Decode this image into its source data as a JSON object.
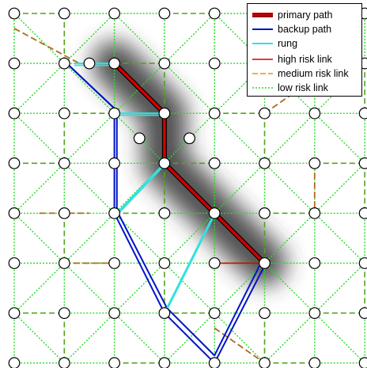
{
  "legend": {
    "items": [
      {
        "label": "primary path",
        "style": "primary",
        "color": "#d40000"
      },
      {
        "label": "backup path",
        "style": "backup",
        "color": "#0014c8"
      },
      {
        "label": "rung",
        "style": "rung",
        "color": "#33e0e0"
      },
      {
        "label": "high risk link",
        "style": "high",
        "color": "#d40000"
      },
      {
        "label": "medium risk link",
        "style": "medium",
        "color": "#e69a00"
      },
      {
        "label": "low risk link",
        "style": "low",
        "color": "#22dd22"
      }
    ]
  },
  "colors": {
    "node_fill": "#ffffff",
    "node_stroke": "#000000",
    "low_risk": "#22dd22",
    "medium_risk": "#e69a00",
    "high_risk": "#d40000",
    "brown_link": "#b06a1c",
    "dark_green_link": "#4ea51c",
    "primary": "#d40000",
    "backup": "#0014c8",
    "rung": "#33e0e0",
    "shadow": "#333333"
  },
  "network": {
    "grid_columns": 8,
    "grid_rows": 8,
    "extra_nodes": [
      [
        1.5,
        1
      ],
      [
        2.5,
        2.5
      ],
      [
        3.5,
        2.5
      ]
    ],
    "primary_path": [
      [
        2,
        1
      ],
      [
        3,
        2
      ],
      [
        3,
        3
      ],
      [
        4,
        4
      ],
      [
        5,
        5
      ]
    ],
    "backup_path_outer": [
      [
        1.05,
        1
      ],
      [
        2,
        1.9
      ],
      [
        2,
        4
      ],
      [
        3,
        6
      ],
      [
        4,
        7
      ],
      [
        5,
        5.05
      ]
    ],
    "backup_path_inner": [
      [
        1.1,
        1.05
      ],
      [
        2.05,
        1.95
      ],
      [
        2.05,
        3.95
      ],
      [
        3.05,
        5.9
      ],
      [
        4,
        6.85
      ],
      [
        4.9,
        5.05
      ]
    ],
    "rungs": [
      [
        [
          1.2,
          1
        ],
        [
          2,
          1
        ]
      ],
      [
        [
          2.05,
          2
        ],
        [
          3,
          2
        ]
      ],
      [
        [
          2.05,
          4
        ],
        [
          3,
          3
        ]
      ],
      [
        [
          3.05,
          5.9
        ],
        [
          4,
          4
        ]
      ]
    ],
    "high_risk_links": [
      [
        [
          4,
          5
        ],
        [
          5,
          5
        ]
      ],
      [
        [
          3,
          2
        ],
        [
          3,
          3
        ]
      ]
    ],
    "medium_risk_links": [
      [
        [
          0,
          0.3
        ],
        [
          1.3,
          1
        ]
      ],
      [
        [
          0.5,
          4
        ],
        [
          1.5,
          4
        ]
      ],
      [
        [
          5,
          2
        ],
        [
          6,
          1.3
        ]
      ],
      [
        [
          6,
          3
        ],
        [
          6,
          4
        ]
      ],
      [
        [
          4,
          6.3
        ],
        [
          5,
          7
        ]
      ],
      [
        [
          1,
          5
        ],
        [
          2,
          5
        ]
      ]
    ]
  }
}
